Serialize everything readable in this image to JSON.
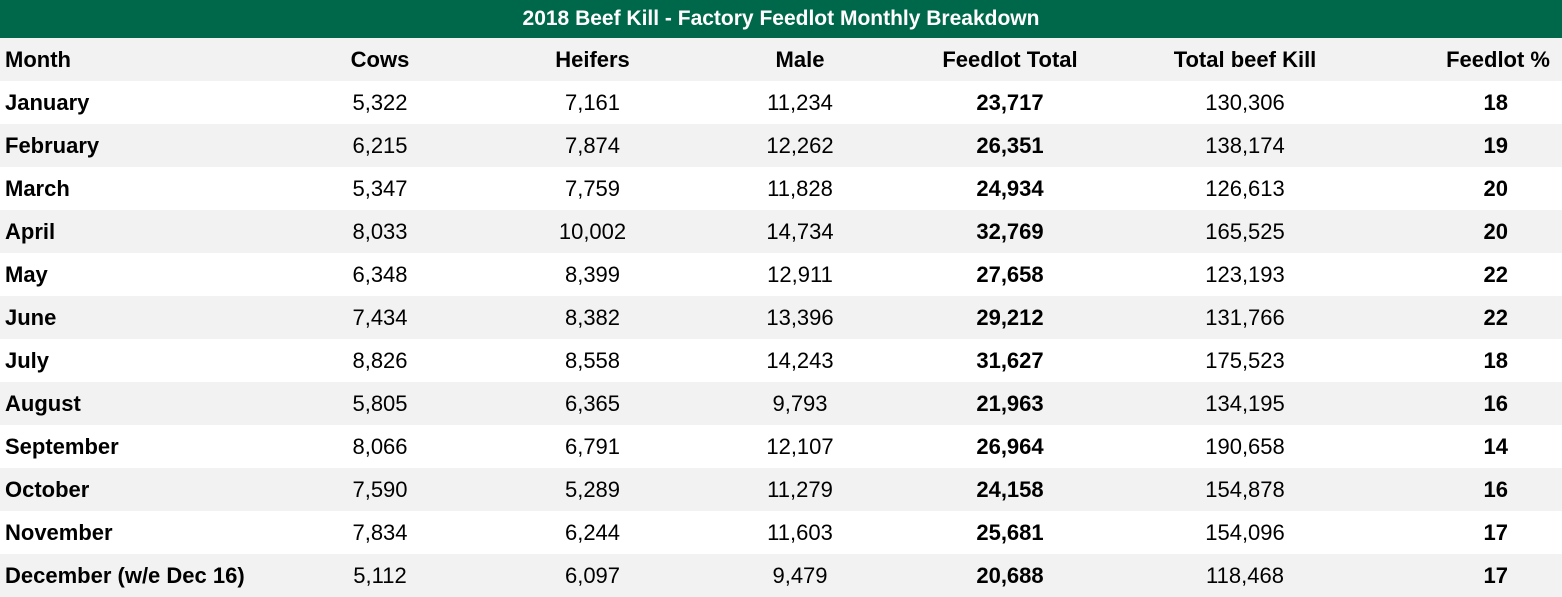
{
  "title": "2018 Beef Kill - Factory Feedlot Monthly Breakdown",
  "columns": [
    "Month",
    "Cows",
    "Heifers",
    "Male",
    "Feedlot Total",
    "Total beef Kill",
    "Feedlot %"
  ],
  "rows": [
    {
      "month": "January",
      "cows": "5,322",
      "heifers": "7,161",
      "male": "11,234",
      "feedlot_total": "23,717",
      "total_kill": "130,306",
      "feedlot_pct": "18"
    },
    {
      "month": "February",
      "cows": "6,215",
      "heifers": "7,874",
      "male": "12,262",
      "feedlot_total": "26,351",
      "total_kill": "138,174",
      "feedlot_pct": "19"
    },
    {
      "month": "March",
      "cows": "5,347",
      "heifers": "7,759",
      "male": "11,828",
      "feedlot_total": "24,934",
      "total_kill": "126,613",
      "feedlot_pct": "20"
    },
    {
      "month": "April",
      "cows": "8,033",
      "heifers": "10,002",
      "male": "14,734",
      "feedlot_total": "32,769",
      "total_kill": "165,525",
      "feedlot_pct": "20"
    },
    {
      "month": "May",
      "cows": "6,348",
      "heifers": "8,399",
      "male": "12,911",
      "feedlot_total": "27,658",
      "total_kill": "123,193",
      "feedlot_pct": "22"
    },
    {
      "month": "June",
      "cows": "7,434",
      "heifers": "8,382",
      "male": "13,396",
      "feedlot_total": "29,212",
      "total_kill": "131,766",
      "feedlot_pct": "22"
    },
    {
      "month": "July",
      "cows": "8,826",
      "heifers": "8,558",
      "male": "14,243",
      "feedlot_total": "31,627",
      "total_kill": "175,523",
      "feedlot_pct": "18"
    },
    {
      "month": "August",
      "cows": "5,805",
      "heifers": "6,365",
      "male": "9,793",
      "feedlot_total": "21,963",
      "total_kill": "134,195",
      "feedlot_pct": "16"
    },
    {
      "month": "September",
      "cows": "8,066",
      "heifers": "6,791",
      "male": "12,107",
      "feedlot_total": "26,964",
      "total_kill": "190,658",
      "feedlot_pct": "14"
    },
    {
      "month": "October",
      "cows": "7,590",
      "heifers": "5,289",
      "male": "11,279",
      "feedlot_total": "24,158",
      "total_kill": "154,878",
      "feedlot_pct": "16"
    },
    {
      "month": "November",
      "cows": "7,834",
      "heifers": "6,244",
      "male": "11,603",
      "feedlot_total": "25,681",
      "total_kill": "154,096",
      "feedlot_pct": "17"
    },
    {
      "month": "December (w/e Dec 16)",
      "cows": "5,112",
      "heifers": "6,097",
      "male": "9,479",
      "feedlot_total": "20,688",
      "total_kill": "118,468",
      "feedlot_pct": "17"
    }
  ],
  "colors": {
    "header_bg": "#00684a",
    "stripe": "#f2f2f2"
  }
}
